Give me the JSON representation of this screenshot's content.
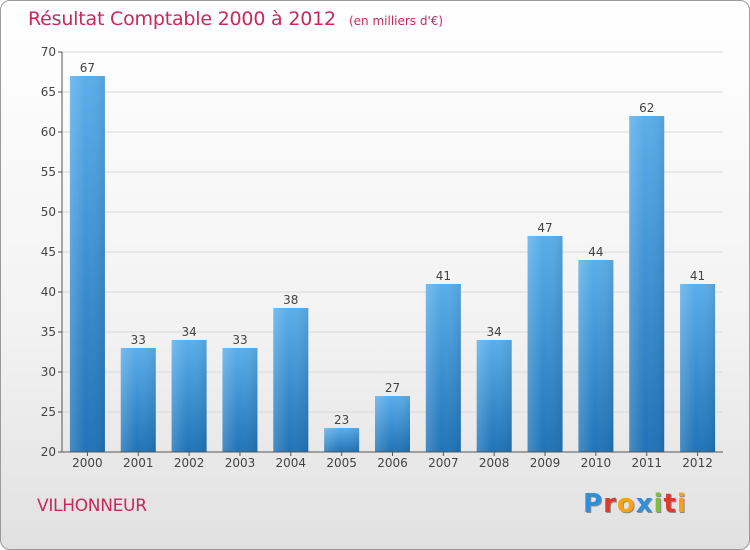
{
  "title": "Résultat Comptable 2000 à 2012",
  "subtitle": "(en milliers d'€)",
  "commune": "VILHONNEUR",
  "brand": "Proxiti",
  "colors": {
    "accent": "#c8285a",
    "bar_top": "#5aaeea",
    "bar_bottom": "#1f73b7",
    "grid": "#d9d9d9",
    "axis": "#555555"
  },
  "chart_data": {
    "type": "bar",
    "title": "Résultat Comptable 2000 à 2012",
    "subtitle": "(en milliers d'€)",
    "xlabel": "",
    "ylabel": "",
    "categories": [
      "2000",
      "2001",
      "2002",
      "2003",
      "2004",
      "2005",
      "2006",
      "2007",
      "2008",
      "2009",
      "2010",
      "2011",
      "2012"
    ],
    "values": [
      67,
      33,
      34,
      33,
      38,
      23,
      27,
      41,
      34,
      47,
      44,
      62,
      41
    ],
    "ylim": [
      20,
      70
    ],
    "yticks": [
      20,
      25,
      30,
      35,
      40,
      45,
      50,
      55,
      60,
      65,
      70
    ],
    "grid": true,
    "legend": "none"
  }
}
